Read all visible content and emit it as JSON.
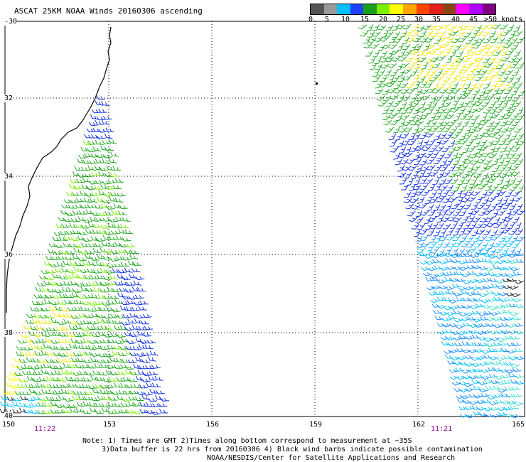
{
  "title": "ASCAT 25KM NOAA Winds 20160306 ascending",
  "scale": {
    "colors": [
      "#555555",
      "#999999",
      "#00bfff",
      "#1e40ff",
      "#1a9e1a",
      "#7cf000",
      "#ffff00",
      "#ffa500",
      "#ff4500",
      "#e0201c",
      "#8b4513",
      "#ff00ff",
      "#b000ff",
      "#800080"
    ],
    "labels": [
      "0",
      "5",
      "10",
      "15",
      "20",
      "25",
      "30",
      "35",
      "40",
      "45",
      ">50 knots"
    ]
  },
  "axes": {
    "lon_labels": [
      "150",
      "153",
      "156",
      "159",
      "162",
      "165"
    ],
    "lat_labels": [
      "-30",
      "32",
      "34",
      "36",
      "38",
      "40"
    ]
  },
  "times": {
    "left": "11:22",
    "right": "11:21"
  },
  "notes": {
    "line1": "Note: 1) Times are GMT 2)Times along bottom correspond to measurement at ~35S",
    "line2": "3)Data buffer is 22 hrs from 20160306 4) Black wind barbs indicate possible contamination",
    "line3": "NOAA/NESDIS/Center for Satellite Applications and Research"
  }
}
